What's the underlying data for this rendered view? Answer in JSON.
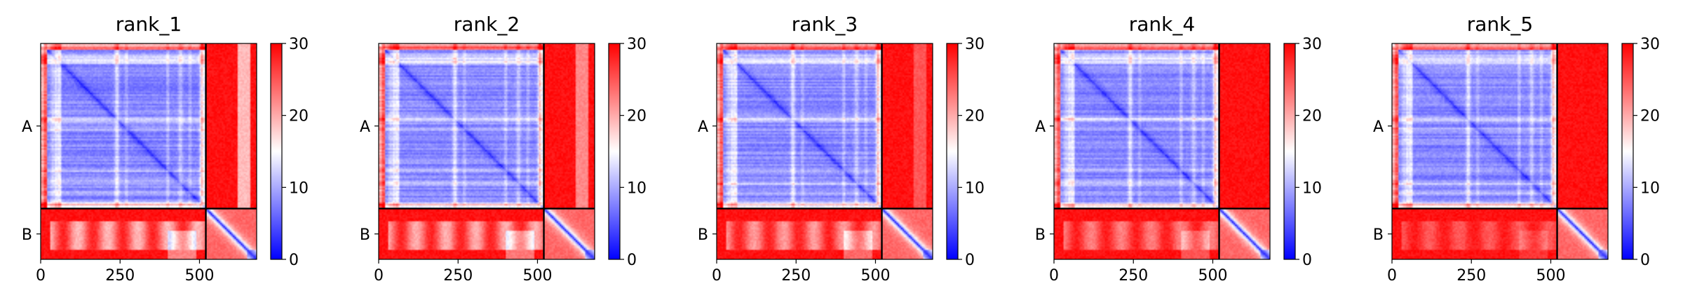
{
  "figure": {
    "colorbar": {
      "min": 0,
      "max": 30,
      "ticks": [
        0,
        10,
        20,
        30
      ],
      "colors": {
        "low": "#0000ff",
        "mid": "#ffffff",
        "high": "#ff0000"
      }
    },
    "xticks": [
      0,
      250,
      500
    ],
    "chain_labels": [
      "A",
      "B"
    ]
  },
  "chart_data": [
    {
      "type": "heatmap",
      "title": "rank_1",
      "xlim": [
        0,
        680
      ],
      "ylim": [
        680,
        0
      ],
      "chain_boundary": 520,
      "chains": [
        {
          "name": "A",
          "range": [
            0,
            520
          ]
        },
        {
          "name": "B",
          "range": [
            520,
            680
          ]
        }
      ],
      "value_range": [
        0,
        30
      ],
      "cmap": "bwr",
      "grid": false
    },
    {
      "type": "heatmap",
      "title": "rank_2",
      "xlim": [
        0,
        680
      ],
      "ylim": [
        680,
        0
      ],
      "chain_boundary": 520,
      "chains": [
        {
          "name": "A",
          "range": [
            0,
            520
          ]
        },
        {
          "name": "B",
          "range": [
            520,
            680
          ]
        }
      ],
      "value_range": [
        0,
        30
      ],
      "cmap": "bwr",
      "grid": false
    },
    {
      "type": "heatmap",
      "title": "rank_3",
      "xlim": [
        0,
        680
      ],
      "ylim": [
        680,
        0
      ],
      "chain_boundary": 520,
      "chains": [
        {
          "name": "A",
          "range": [
            0,
            520
          ]
        },
        {
          "name": "B",
          "range": [
            520,
            680
          ]
        }
      ],
      "value_range": [
        0,
        30
      ],
      "cmap": "bwr",
      "grid": false
    },
    {
      "type": "heatmap",
      "title": "rank_4",
      "xlim": [
        0,
        680
      ],
      "ylim": [
        680,
        0
      ],
      "chain_boundary": 520,
      "chains": [
        {
          "name": "A",
          "range": [
            0,
            520
          ]
        },
        {
          "name": "B",
          "range": [
            520,
            680
          ]
        }
      ],
      "value_range": [
        0,
        30
      ],
      "cmap": "bwr",
      "grid": false
    },
    {
      "type": "heatmap",
      "title": "rank_5",
      "xlim": [
        0,
        680
      ],
      "ylim": [
        680,
        0
      ],
      "chain_boundary": 520,
      "chains": [
        {
          "name": "A",
          "range": [
            0,
            520
          ]
        },
        {
          "name": "B",
          "range": [
            520,
            680
          ]
        }
      ],
      "value_range": [
        0,
        30
      ],
      "cmap": "bwr",
      "grid": false
    }
  ]
}
